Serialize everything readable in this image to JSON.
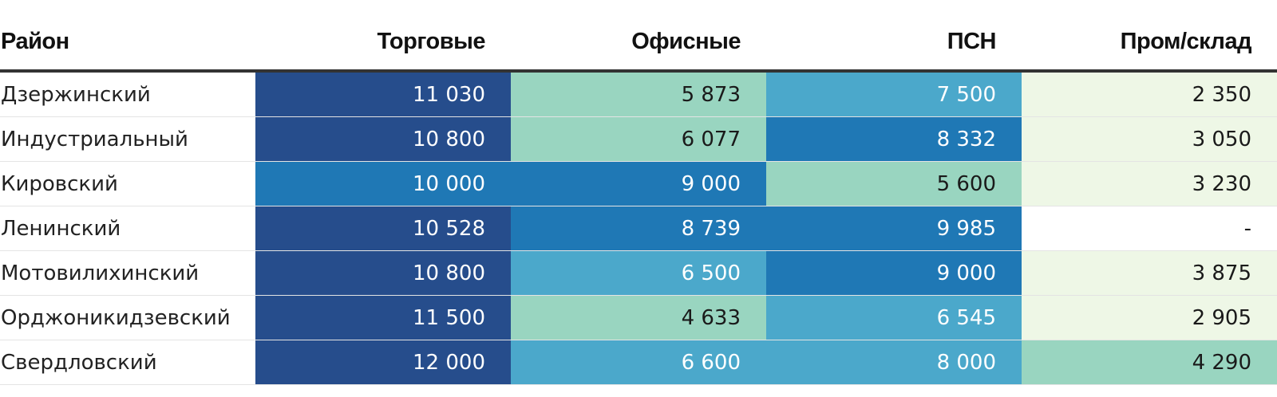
{
  "chart_data": {
    "type": "table",
    "columns": [
      "Район",
      "Торговые",
      "Офисные",
      "ПСН",
      "Пром/склад"
    ],
    "rows": [
      {
        "district": "Дзержинский",
        "cells": [
          "11 030",
          "5 873",
          "7 500",
          "2 350"
        ],
        "colors": [
          "#264d8c",
          "#99d5c0",
          "#4ba8cb",
          "#eef7e6"
        ]
      },
      {
        "district": "Индустриальный",
        "cells": [
          "10 800",
          "6 077",
          "8 332",
          "3 050"
        ],
        "colors": [
          "#264d8c",
          "#99d5c0",
          "#1f78b5",
          "#eef7e6"
        ]
      },
      {
        "district": "Кировский",
        "cells": [
          "10 000",
          "9 000",
          "5 600",
          "3 230"
        ],
        "colors": [
          "#1f78b5",
          "#1f78b5",
          "#99d5c0",
          "#eef7e6"
        ]
      },
      {
        "district": "Ленинский",
        "cells": [
          "10 528",
          "8 739",
          "9 985",
          "-"
        ],
        "colors": [
          "#264d8c",
          "#1f78b5",
          "#1f78b5",
          "#ffffff"
        ]
      },
      {
        "district": "Мотовилихинский",
        "cells": [
          "10 800",
          "6 500",
          "9 000",
          "3 875"
        ],
        "colors": [
          "#264d8c",
          "#4ba8cb",
          "#1f78b5",
          "#eef7e6"
        ]
      },
      {
        "district": "Орджоникидзевский",
        "cells": [
          "11 500",
          "4 633",
          "6 545",
          "2 905"
        ],
        "colors": [
          "#264d8c",
          "#99d5c0",
          "#4ba8cb",
          "#eef7e6"
        ]
      },
      {
        "district": "Свердловский",
        "cells": [
          "12 000",
          "6 600",
          "8 000",
          "4 290"
        ],
        "colors": [
          "#264d8c",
          "#4ba8cb",
          "#4ba8cb",
          "#99d5c0"
        ]
      }
    ]
  }
}
